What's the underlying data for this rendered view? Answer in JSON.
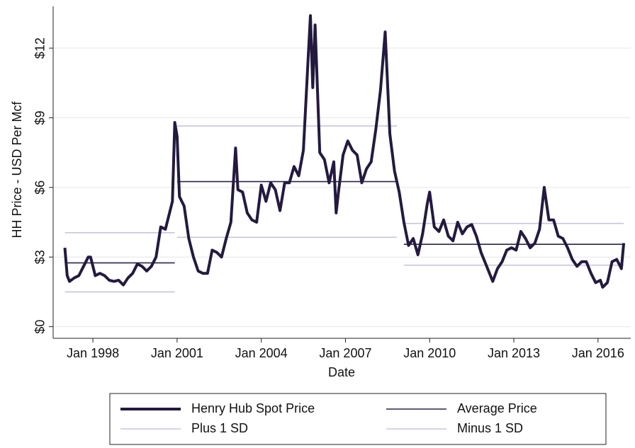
{
  "chart_data": {
    "type": "line",
    "x_label": "Date",
    "y_label": "HH Price - USD Per Mcf",
    "xlim": [
      "1996-08",
      "2017-03"
    ],
    "ylim": [
      -0.5,
      13.8
    ],
    "xticks": [
      {
        "value": "1998-01",
        "label": "Jan 1998"
      },
      {
        "value": "2001-01",
        "label": "Jan 2001"
      },
      {
        "value": "2004-01",
        "label": "Jan 2004"
      },
      {
        "value": "2007-01",
        "label": "Jan 2007"
      },
      {
        "value": "2010-01",
        "label": "Jan 2010"
      },
      {
        "value": "2013-01",
        "label": "Jan 2013"
      },
      {
        "value": "2016-01",
        "label": "Jan 2016"
      }
    ],
    "yticks": [
      {
        "value": 0,
        "label": "$0"
      },
      {
        "value": 3,
        "label": "$3"
      },
      {
        "value": 6,
        "label": "$6"
      },
      {
        "value": 9,
        "label": "$9"
      },
      {
        "value": 12,
        "label": "$12"
      }
    ],
    "grid": true,
    "legend": "bottom",
    "series": [
      {
        "name": "Henry Hub Spot Price",
        "color": "#241a3f",
        "x": [
          "1997-01",
          "1997-02",
          "1997-03",
          "1997-05",
          "1997-07",
          "1997-09",
          "1997-11",
          "1997-12",
          "1998-02",
          "1998-04",
          "1998-06",
          "1998-08",
          "1998-10",
          "1998-12",
          "1999-02",
          "1999-04",
          "1999-06",
          "1999-08",
          "1999-10",
          "1999-12",
          "2000-02",
          "2000-04",
          "2000-06",
          "2000-08",
          "2000-10",
          "2000-11",
          "2000-12",
          "2001-01",
          "2001-02",
          "2001-04",
          "2001-06",
          "2001-08",
          "2001-10",
          "2001-12",
          "2002-02",
          "2002-04",
          "2002-06",
          "2002-08",
          "2002-10",
          "2002-12",
          "2003-02",
          "2003-03",
          "2003-05",
          "2003-07",
          "2003-09",
          "2003-11",
          "2004-01",
          "2004-03",
          "2004-05",
          "2004-07",
          "2004-09",
          "2004-11",
          "2005-01",
          "2005-03",
          "2005-05",
          "2005-07",
          "2005-09",
          "2005-10",
          "2005-11",
          "2005-12",
          "2006-02",
          "2006-04",
          "2006-06",
          "2006-08",
          "2006-09",
          "2006-10",
          "2006-12",
          "2007-02",
          "2007-04",
          "2007-06",
          "2007-08",
          "2007-10",
          "2007-12",
          "2008-02",
          "2008-04",
          "2008-06",
          "2008-08",
          "2008-10",
          "2008-12",
          "2009-02",
          "2009-04",
          "2009-06",
          "2009-08",
          "2009-10",
          "2009-12",
          "2010-01",
          "2010-03",
          "2010-05",
          "2010-07",
          "2010-09",
          "2010-11",
          "2011-01",
          "2011-03",
          "2011-05",
          "2011-07",
          "2011-09",
          "2011-11",
          "2012-01",
          "2012-04",
          "2012-06",
          "2012-08",
          "2012-10",
          "2012-12",
          "2013-02",
          "2013-04",
          "2013-06",
          "2013-08",
          "2013-10",
          "2013-12",
          "2014-02",
          "2014-04",
          "2014-06",
          "2014-08",
          "2014-10",
          "2014-12",
          "2015-02",
          "2015-04",
          "2015-06",
          "2015-08",
          "2015-10",
          "2015-12",
          "2016-02",
          "2016-03",
          "2016-05",
          "2016-07",
          "2016-09",
          "2016-11",
          "2016-12"
        ],
        "values": [
          3.4,
          2.2,
          1.95,
          2.1,
          2.2,
          2.6,
          3.0,
          3.0,
          2.2,
          2.3,
          2.2,
          2.0,
          1.95,
          2.0,
          1.8,
          2.1,
          2.3,
          2.7,
          2.6,
          2.4,
          2.6,
          3.0,
          4.3,
          4.2,
          5.0,
          5.4,
          8.8,
          8.2,
          5.6,
          5.2,
          3.8,
          3.0,
          2.4,
          2.3,
          2.3,
          3.3,
          3.2,
          3.0,
          3.8,
          4.5,
          7.7,
          5.9,
          5.8,
          4.9,
          4.6,
          4.5,
          6.1,
          5.4,
          6.2,
          5.9,
          5.0,
          6.2,
          6.2,
          6.9,
          6.5,
          7.6,
          11.5,
          13.4,
          10.3,
          13.0,
          7.5,
          7.2,
          6.2,
          7.1,
          4.9,
          5.8,
          7.4,
          8.0,
          7.6,
          7.4,
          6.2,
          6.8,
          7.1,
          8.5,
          10.2,
          12.7,
          8.3,
          6.7,
          5.8,
          4.5,
          3.5,
          3.8,
          3.1,
          4.0,
          5.3,
          5.8,
          4.3,
          4.1,
          4.6,
          3.9,
          3.7,
          4.5,
          4.0,
          4.3,
          4.4,
          3.9,
          3.2,
          2.7,
          1.95,
          2.5,
          2.8,
          3.3,
          3.4,
          3.3,
          4.1,
          3.8,
          3.4,
          3.6,
          4.2,
          6.0,
          4.6,
          4.6,
          3.9,
          3.8,
          3.4,
          2.9,
          2.6,
          2.8,
          2.8,
          2.3,
          1.9,
          2.0,
          1.7,
          1.9,
          2.8,
          2.9,
          2.5,
          3.6
        ]
      },
      {
        "name": "Average Price",
        "color": "#2a2448",
        "x": [
          "1997-01",
          "2000-12",
          "2000-12",
          "2001-01",
          "2008-11",
          "2008-11",
          "2009-02",
          "2016-12"
        ],
        "values": [
          2.75,
          2.75,
          null,
          6.25,
          6.25,
          null,
          3.55,
          3.55
        ]
      },
      {
        "name": "Plus 1 SD",
        "color": "#c9c5dc",
        "x": [
          "1997-01",
          "2000-12",
          "2000-12",
          "2001-01",
          "2008-11",
          "2008-11",
          "2009-02",
          "2016-12"
        ],
        "values": [
          4.05,
          4.05,
          null,
          8.65,
          8.65,
          null,
          4.45,
          4.45
        ]
      },
      {
        "name": "Minus 1 SD",
        "color": "#c9c5dc",
        "x": [
          "1997-01",
          "2000-12",
          "2000-12",
          "2001-01",
          "2008-11",
          "2008-11",
          "2009-02",
          "2016-12"
        ],
        "values": [
          1.5,
          1.5,
          null,
          3.85,
          3.85,
          null,
          2.65,
          2.65
        ]
      }
    ]
  }
}
